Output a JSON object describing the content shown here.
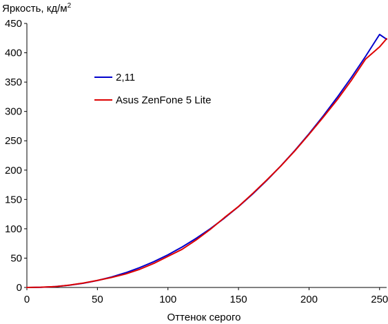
{
  "chart_data": {
    "type": "line",
    "title": "",
    "ylabel": "Яркость, кд/м",
    "ylabel_superscript": "2",
    "xlabel": "Оттенок серого",
    "xlim": [
      0,
      255
    ],
    "ylim": [
      0,
      450
    ],
    "xticks": [
      0,
      50,
      100,
      150,
      200,
      250
    ],
    "yticks": [
      0,
      50,
      100,
      150,
      200,
      250,
      300,
      350,
      400,
      450
    ],
    "grid": false,
    "legend_placement": "upper-left",
    "series": [
      {
        "name": "2,11",
        "color": "#0000cc",
        "x": [
          0,
          10,
          20,
          30,
          40,
          50,
          60,
          70,
          80,
          90,
          100,
          110,
          120,
          130,
          140,
          150,
          160,
          170,
          180,
          190,
          200,
          210,
          220,
          230,
          240,
          250,
          255
        ],
        "values": [
          0,
          0.3,
          1.5,
          3.8,
          7.2,
          11.9,
          17.8,
          25.1,
          33.8,
          44.0,
          55.7,
          68.9,
          83.7,
          100.1,
          118.2,
          137.8,
          159.2,
          182.3,
          207.1,
          233.6,
          262.0,
          292.1,
          324.1,
          357.9,
          393.6,
          431.2,
          423.0
        ]
      },
      {
        "name": "Asus ZenFone 5 Lite",
        "color": "#dd0000",
        "x": [
          0,
          10,
          20,
          30,
          40,
          50,
          60,
          70,
          80,
          90,
          100,
          110,
          120,
          130,
          140,
          150,
          160,
          170,
          180,
          190,
          200,
          210,
          220,
          230,
          240,
          250,
          255
        ],
        "values": [
          0,
          0.4,
          1.4,
          4.0,
          7.5,
          12.0,
          17.0,
          23.0,
          31.0,
          41.0,
          53.0,
          65.0,
          81.0,
          99.0,
          119.0,
          138.0,
          160.0,
          183.0,
          207.0,
          233.0,
          261.0,
          290.0,
          320.0,
          353.0,
          389.0,
          410.0,
          424.0
        ]
      }
    ]
  }
}
